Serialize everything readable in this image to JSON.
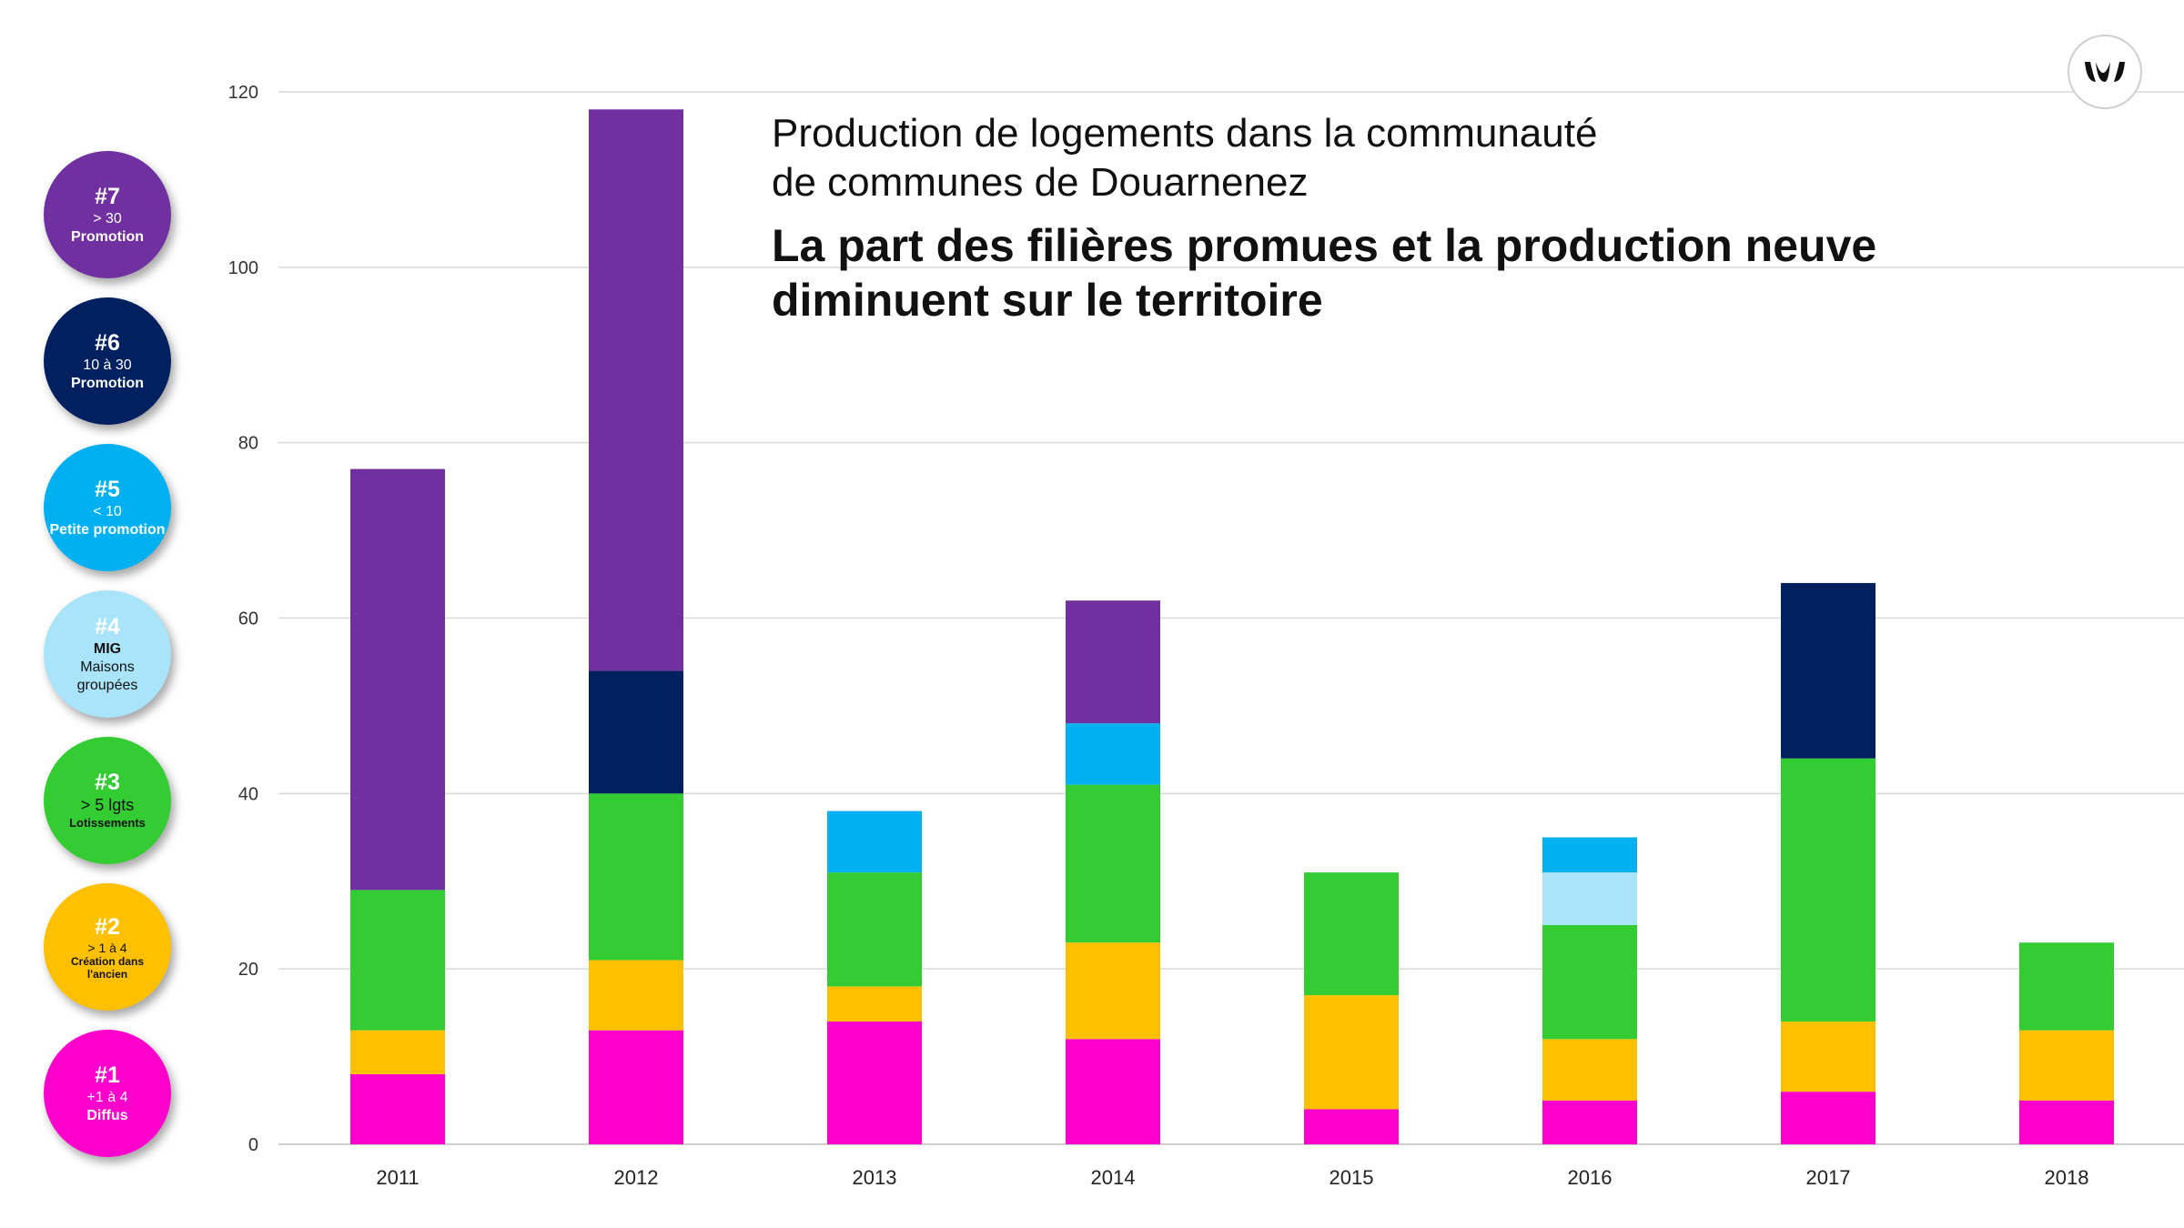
{
  "title": {
    "line1": "Production de logements dans la communauté",
    "line2": "de communes de Douarnenez",
    "subtitle_line1": "La part des filières promues et la production neuve",
    "subtitle_line2": "diminuent sur le territoire"
  },
  "legend": [
    {
      "num": "#7",
      "line1": "> 30",
      "line2": "Promotion",
      "color": "#7030A0"
    },
    {
      "num": "#6",
      "line1": "10 à 30",
      "line2": "Promotion",
      "color": "#002060"
    },
    {
      "num": "#5",
      "line1": "< 10",
      "line2": "Petite promotion",
      "color": "#00B0F0"
    },
    {
      "num": "#4",
      "line1": "MIG",
      "line2": "Maisons groupées",
      "color": "#A9E4FA"
    },
    {
      "num": "#3",
      "line1": "> 5 lgts",
      "line2": "Lotissements",
      "color": "#33CC33"
    },
    {
      "num": "#2",
      "line1": "> 1 à 4",
      "line2": "Création dans l'ancien",
      "color": "#FFC000"
    },
    {
      "num": "#1",
      "line1": "+1 à 4",
      "line2": "Diffus",
      "color": "#FF00CC"
    }
  ],
  "chart_data": {
    "type": "bar",
    "stacked": true,
    "categories": [
      "2011",
      "2012",
      "2013",
      "2014",
      "2015",
      "2016",
      "2017",
      "2018"
    ],
    "ylim": [
      0,
      120
    ],
    "yticks": [
      0,
      20,
      40,
      60,
      80,
      100,
      120
    ],
    "grid": true,
    "series": [
      {
        "key": "#1",
        "color": "#FF00CC",
        "values": [
          8,
          13,
          14,
          12,
          4,
          5,
          6,
          5
        ]
      },
      {
        "key": "#2",
        "color": "#FFC000",
        "values": [
          5,
          8,
          4,
          11,
          13,
          7,
          8,
          8
        ]
      },
      {
        "key": "#3",
        "color": "#33CC33",
        "values": [
          16,
          19,
          13,
          18,
          14,
          13,
          30,
          10
        ]
      },
      {
        "key": "#4",
        "color": "#A9E4FA",
        "values": [
          0,
          0,
          0,
          0,
          0,
          6,
          0,
          0
        ]
      },
      {
        "key": "#5",
        "color": "#00B0F0",
        "values": [
          0,
          0,
          7,
          7,
          0,
          4,
          0,
          0
        ]
      },
      {
        "key": "#6",
        "color": "#002060",
        "values": [
          0,
          14,
          0,
          0,
          0,
          0,
          20,
          0
        ]
      },
      {
        "key": "#7",
        "color": "#7030A0",
        "values": [
          48,
          64,
          0,
          14,
          0,
          0,
          0,
          0
        ]
      }
    ]
  }
}
